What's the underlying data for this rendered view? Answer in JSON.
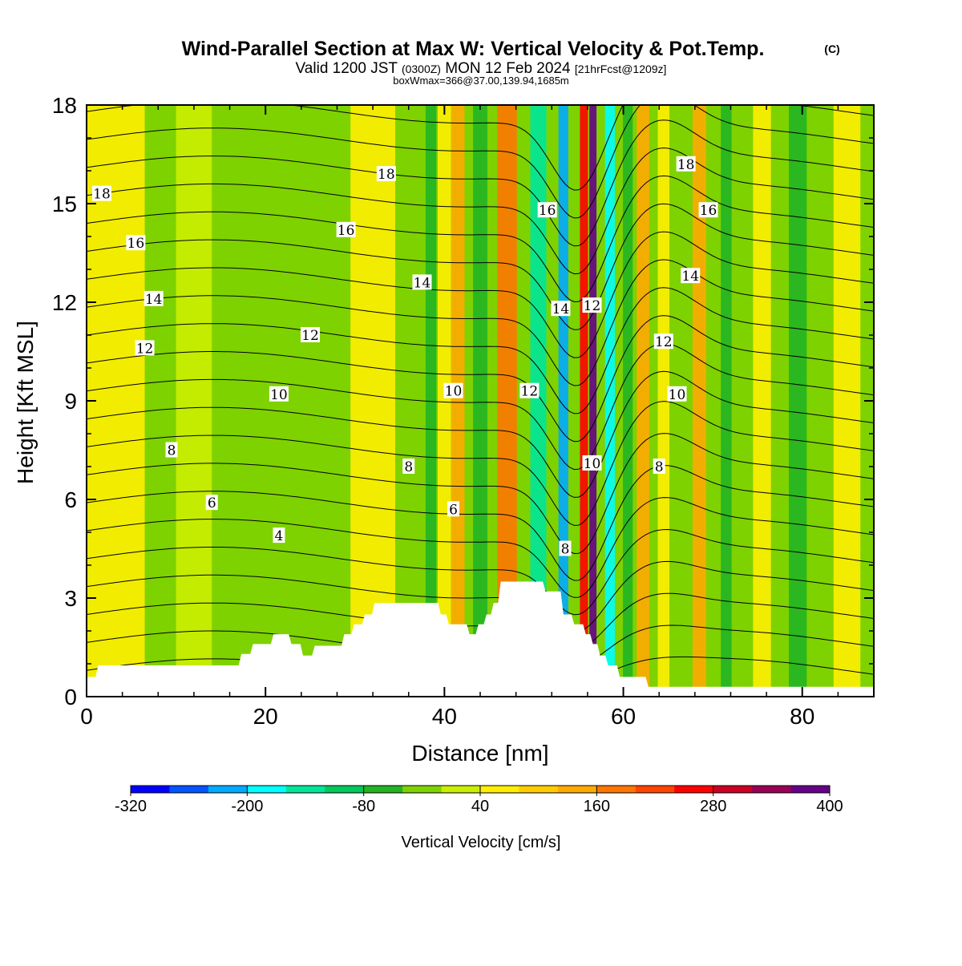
{
  "chart_data": {
    "type": "heatmap",
    "title": "Wind-Parallel Section at Max W: Vertical Velocity & Pot.Temp.",
    "title_mark": "(C)",
    "subtitle": {
      "prefix": "Valid 1200 JST",
      "utc": "(0300Z)",
      "date": "MON 12 Feb 2024",
      "fcst": "[21hrFcst@1209z]"
    },
    "subtitle2": "boxWmax=366@37.00,139.94,1685m",
    "xlabel": "Distance [nm]",
    "ylabel": "Height [Kft MSL]",
    "xlim": [
      0,
      88
    ],
    "ylim": [
      0,
      18
    ],
    "x_ticks": [
      "0",
      "20",
      "40",
      "60",
      "80"
    ],
    "y_ticks": [
      "0",
      "3",
      "6",
      "9",
      "12",
      "15",
      "18"
    ],
    "colorbar": {
      "label": "Vertical Velocity [cm/s]",
      "tick_labels": [
        "-320",
        "-200",
        "-80",
        "40",
        "160",
        "280",
        "400"
      ],
      "range": [
        -320,
        400
      ],
      "colors": [
        "#0000ff",
        "#0055ff",
        "#00aaff",
        "#00ffff",
        "#00e59a",
        "#00c85a",
        "#22b422",
        "#7ed200",
        "#ccee00",
        "#ffee00",
        "#ffcc00",
        "#ffaa00",
        "#ff7700",
        "#ff4400",
        "#ff0000",
        "#cc0022",
        "#990055",
        "#660088"
      ]
    },
    "contours": {
      "field": "Potential Temperature",
      "unit": "C",
      "labels": [
        {
          "text": "18",
          "x": 1.7,
          "y": 15.3
        },
        {
          "text": "18",
          "x": 33.5,
          "y": 15.9
        },
        {
          "text": "18",
          "x": 67.0,
          "y": 16.2
        },
        {
          "text": "16",
          "x": 5.5,
          "y": 13.8
        },
        {
          "text": "16",
          "x": 29.0,
          "y": 14.2
        },
        {
          "text": "16",
          "x": 51.5,
          "y": 14.8
        },
        {
          "text": "16",
          "x": 69.5,
          "y": 14.8
        },
        {
          "text": "14",
          "x": 7.5,
          "y": 12.1
        },
        {
          "text": "14",
          "x": 37.5,
          "y": 12.6
        },
        {
          "text": "14",
          "x": 53.0,
          "y": 11.8
        },
        {
          "text": "14",
          "x": 67.5,
          "y": 12.8
        },
        {
          "text": "12",
          "x": 6.5,
          "y": 10.6
        },
        {
          "text": "12",
          "x": 25.0,
          "y": 11.0
        },
        {
          "text": "12",
          "x": 49.5,
          "y": 9.3
        },
        {
          "text": "12",
          "x": 56.5,
          "y": 11.9
        },
        {
          "text": "12",
          "x": 64.5,
          "y": 10.8
        },
        {
          "text": "10",
          "x": 21.5,
          "y": 9.2
        },
        {
          "text": "10",
          "x": 41.0,
          "y": 9.3
        },
        {
          "text": "10",
          "x": 56.5,
          "y": 7.1
        },
        {
          "text": "10",
          "x": 66.0,
          "y": 9.2
        },
        {
          "text": "8",
          "x": 9.5,
          "y": 7.5
        },
        {
          "text": "8",
          "x": 36.0,
          "y": 7.0
        },
        {
          "text": "8",
          "x": 53.5,
          "y": 4.5
        },
        {
          "text": "8",
          "x": 64.0,
          "y": 7.0
        },
        {
          "text": "6",
          "x": 14.0,
          "y": 5.9
        },
        {
          "text": "6",
          "x": 41.0,
          "y": 5.7
        },
        {
          "text": "4",
          "x": 21.5,
          "y": 4.9
        }
      ]
    },
    "terrain": {
      "x": [
        0,
        1,
        1.3,
        17,
        17.3,
        18.3,
        18.6,
        20.6,
        20.9,
        22.6,
        22.9,
        23.9,
        24.2,
        25.2,
        25.5,
        28.5,
        28.8,
        29.6,
        29.9,
        30.8,
        31.1,
        31.9,
        32.2,
        39.3,
        39.6,
        40.2,
        40.5,
        42.5,
        42.8,
        43.5,
        43.8,
        44.4,
        44.7,
        45.2,
        45.5,
        46.0,
        46.3,
        51.0,
        51.3,
        53.0,
        53.3,
        54.2,
        54.5,
        55.5,
        55.8,
        56.3,
        56.6,
        57.1,
        57.4,
        58.0,
        58.3,
        59.3,
        59.6,
        62.5,
        62.8,
        65.5,
        65.8,
        88
      ],
      "y": [
        0.6,
        0.6,
        0.95,
        0.95,
        1.3,
        1.3,
        1.6,
        1.6,
        1.9,
        1.9,
        1.6,
        1.6,
        1.25,
        1.25,
        1.55,
        1.55,
        1.9,
        1.9,
        2.2,
        2.2,
        2.5,
        2.5,
        2.85,
        2.85,
        2.5,
        2.5,
        2.2,
        2.2,
        1.9,
        1.9,
        2.2,
        2.2,
        2.5,
        2.5,
        2.85,
        2.85,
        3.5,
        3.5,
        3.2,
        3.2,
        2.5,
        2.5,
        2.2,
        2.2,
        1.9,
        1.9,
        1.6,
        1.6,
        1.25,
        1.25,
        0.95,
        0.95,
        0.6,
        0.6,
        0.3,
        0.3,
        0.3,
        0.3
      ]
    },
    "velocity_bands": [
      {
        "center": 3,
        "width": 7,
        "value": 60
      },
      {
        "center": 12,
        "width": 4,
        "value": 30
      },
      {
        "center": 22,
        "width": 3,
        "value": -20
      },
      {
        "center": 32,
        "width": 5,
        "value": 40
      },
      {
        "center": 38.5,
        "width": 1.2,
        "value": -80
      },
      {
        "center": 40,
        "width": 1.5,
        "value": 60
      },
      {
        "center": 41.5,
        "width": 1.5,
        "value": 120
      },
      {
        "center": 44,
        "width": 1.6,
        "value": -80
      },
      {
        "center": 47,
        "width": 2.2,
        "value": 160
      },
      {
        "center": 50.5,
        "width": 1.8,
        "value": -150
      },
      {
        "center": 53.3,
        "width": 1.1,
        "value": -240
      },
      {
        "center": 55.6,
        "width": 0.9,
        "value": 260
      },
      {
        "center": 56.6,
        "width": 0.8,
        "value": 380
      },
      {
        "center": 58.5,
        "width": 1.1,
        "value": -180
      },
      {
        "center": 60.5,
        "width": 1.1,
        "value": -80
      },
      {
        "center": 62.2,
        "width": 1.4,
        "value": 150
      },
      {
        "center": 64.5,
        "width": 1.3,
        "value": 40
      },
      {
        "center": 68.5,
        "width": 1.5,
        "value": 130
      },
      {
        "center": 71.5,
        "width": 1.2,
        "value": -60
      },
      {
        "center": 75.5,
        "width": 2,
        "value": 60
      },
      {
        "center": 79.5,
        "width": 2,
        "value": -60
      },
      {
        "center": 85,
        "width": 3,
        "value": 70
      }
    ]
  }
}
